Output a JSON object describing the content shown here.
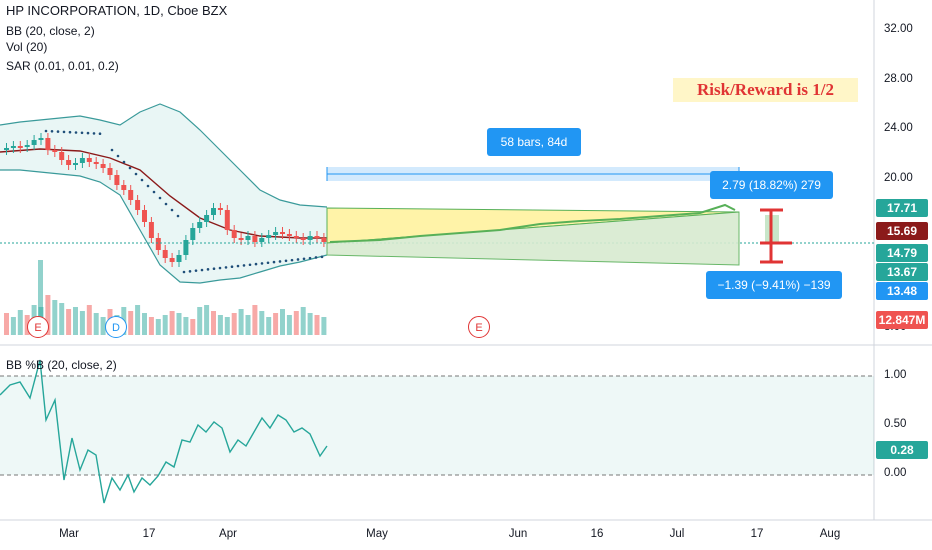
{
  "legend": {
    "symbol": "HP INCORPORATION, 1D, Cboe BZX",
    "bb": "BB (20, close, 2)",
    "vol": "Vol (20)",
    "sar": "SAR (0.01, 0.01, 0.2)",
    "pctb": "BB %B (20, close, 2)"
  },
  "annotation": {
    "note": "Risk/Reward is 1/2",
    "range_label": "58 bars, 84d",
    "target_label": "2.79 (18.82%) 279",
    "stop_label": "−1.39 (−9.41%) −139"
  },
  "events": [
    {
      "label": "E",
      "color": "#e03434"
    },
    {
      "label": "D",
      "color": "#2196f3"
    },
    {
      "label": "E",
      "color": "#e03434"
    }
  ],
  "price_axis": {
    "ticks": [
      "32.00",
      "28.00",
      "24.00",
      "20.00",
      "8.00"
    ],
    "tags": [
      {
        "text": "17.71",
        "color": "#26a69a"
      },
      {
        "text": "15.69",
        "color": "#8b1a1a"
      },
      {
        "text": "14.79",
        "color": "#26a69a"
      },
      {
        "text": "13.67",
        "color": "#26a69a"
      },
      {
        "text": "13.48",
        "color": "#2196f3"
      },
      {
        "text": "12.847M",
        "color": "#ef5350"
      }
    ]
  },
  "pct_axis": {
    "ticks": [
      "1.00",
      "0.50",
      "0.00"
    ],
    "tag": {
      "text": "0.28",
      "color": "#26a69a"
    }
  },
  "time_axis": [
    "Mar",
    "17",
    "Apr",
    "May",
    "Jun",
    "16",
    "Jul",
    "17",
    "Aug"
  ],
  "colors": {
    "up": "#26a69a",
    "down": "#ef5350",
    "bb": "#3a9a9a",
    "ma": "#8b1a1a",
    "sar": "#1f4e79",
    "target": "#fff3a8",
    "stop": "#d8ead0",
    "proj": "#58b058"
  }
}
